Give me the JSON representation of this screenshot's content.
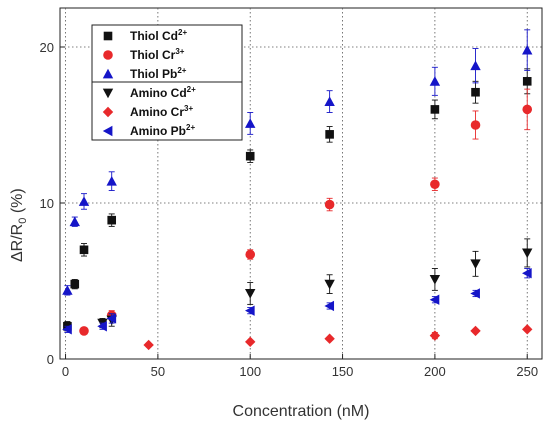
{
  "chart_data": {
    "type": "scatter",
    "xlabel": "Concentration (nM)",
    "ylabel": {
      "base": "ΔR/R",
      "sub": "0",
      "rest": " (%)"
    },
    "xlim": [
      -3,
      258
    ],
    "ylim": [
      0,
      22.5
    ],
    "x_ticks": [
      0,
      50,
      100,
      150,
      200,
      250
    ],
    "y_ticks": [
      0,
      10,
      20
    ],
    "grid": "dotted",
    "legend_position": "top-left",
    "series": [
      {
        "name": "Thiol Cd",
        "charge": "2+",
        "marker": "square",
        "color": "#111111",
        "points": [
          {
            "x": 1,
            "y": 2.1,
            "err": 0.3
          },
          {
            "x": 5,
            "y": 4.8,
            "err": 0.3
          },
          {
            "x": 10,
            "y": 7.0,
            "err": 0.4
          },
          {
            "x": 25,
            "y": 8.9,
            "err": 0.4
          },
          {
            "x": 100,
            "y": 13.0,
            "err": 0.4
          },
          {
            "x": 143,
            "y": 14.4,
            "err": 0.5
          },
          {
            "x": 200,
            "y": 16.0,
            "err": 0.6
          },
          {
            "x": 222,
            "y": 17.1,
            "err": 0.7
          },
          {
            "x": 250,
            "y": 17.8,
            "err": 0.8
          }
        ]
      },
      {
        "name": "Thiol Cr",
        "charge": "3+",
        "marker": "circle",
        "color": "#e8292b",
        "points": [
          {
            "x": 10,
            "y": 1.8,
            "err": 0.2
          },
          {
            "x": 25,
            "y": 2.8,
            "err": 0.3
          },
          {
            "x": 100,
            "y": 6.7,
            "err": 0.3
          },
          {
            "x": 143,
            "y": 9.9,
            "err": 0.4
          },
          {
            "x": 200,
            "y": 11.2,
            "err": 0.4
          },
          {
            "x": 222,
            "y": 15.0,
            "err": 0.9
          },
          {
            "x": 250,
            "y": 16.0,
            "err": 1.3
          }
        ]
      },
      {
        "name": "Thiol Pb",
        "charge": "2+",
        "marker": "triangle-up",
        "color": "#1515c8",
        "points": [
          {
            "x": 1,
            "y": 4.4,
            "err": 0.3
          },
          {
            "x": 5,
            "y": 8.8,
            "err": 0.3
          },
          {
            "x": 10,
            "y": 10.1,
            "err": 0.5
          },
          {
            "x": 25,
            "y": 11.4,
            "err": 0.6
          },
          {
            "x": 100,
            "y": 15.1,
            "err": 0.7
          },
          {
            "x": 143,
            "y": 16.5,
            "err": 0.7
          },
          {
            "x": 200,
            "y": 17.8,
            "err": 0.9
          },
          {
            "x": 222,
            "y": 18.8,
            "err": 1.1
          },
          {
            "x": 250,
            "y": 19.8,
            "err": 1.3
          }
        ]
      },
      {
        "name": "Amino Cd",
        "charge": "2+",
        "marker": "triangle-down",
        "color": "#111111",
        "points": [
          {
            "x": 20,
            "y": 2.3,
            "err": 0.3
          },
          {
            "x": 25,
            "y": 2.5,
            "err": 0.4
          },
          {
            "x": 100,
            "y": 4.2,
            "err": 0.7
          },
          {
            "x": 143,
            "y": 4.8,
            "err": 0.6
          },
          {
            "x": 200,
            "y": 5.1,
            "err": 0.7
          },
          {
            "x": 222,
            "y": 6.1,
            "err": 0.8
          },
          {
            "x": 250,
            "y": 6.8,
            "err": 0.9
          }
        ]
      },
      {
        "name": "Amino Cr",
        "charge": "3+",
        "marker": "diamond",
        "color": "#e8292b",
        "points": [
          {
            "x": 45,
            "y": 0.9,
            "err": 0.1
          },
          {
            "x": 100,
            "y": 1.1,
            "err": 0.1
          },
          {
            "x": 143,
            "y": 1.3,
            "err": 0.1
          },
          {
            "x": 200,
            "y": 1.5,
            "err": 0.2
          },
          {
            "x": 222,
            "y": 1.8,
            "err": 0.1
          },
          {
            "x": 250,
            "y": 1.9,
            "err": 0.1
          }
        ]
      },
      {
        "name": "Amino Pb",
        "charge": "2+",
        "marker": "triangle-left",
        "color": "#1515c8",
        "points": [
          {
            "x": 1,
            "y": 1.9,
            "err": 0.2
          },
          {
            "x": 20,
            "y": 2.1,
            "err": 0.2
          },
          {
            "x": 25,
            "y": 2.6,
            "err": 0.3
          },
          {
            "x": 100,
            "y": 3.1,
            "err": 0.2
          },
          {
            "x": 143,
            "y": 3.4,
            "err": 0.2
          },
          {
            "x": 200,
            "y": 3.8,
            "err": 0.2
          },
          {
            "x": 222,
            "y": 4.2,
            "err": 0.2
          },
          {
            "x": 250,
            "y": 5.5,
            "err": 0.3
          }
        ]
      }
    ]
  }
}
